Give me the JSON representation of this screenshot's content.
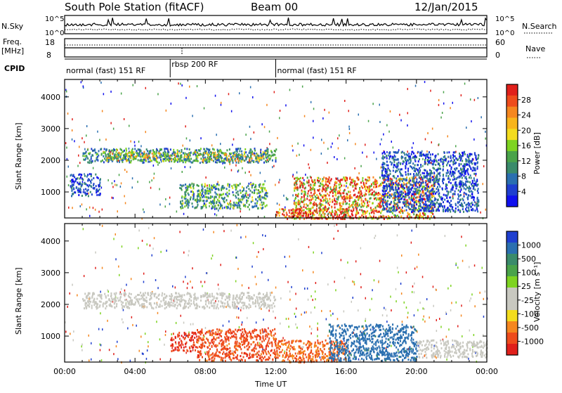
{
  "header": {
    "station": "South Pole Station (fitACF)",
    "beam": "Beam 00",
    "date": "12/Jan/2015"
  },
  "panels": {
    "nsky_label": "N.Sky",
    "nsearch_label": "N.Search",
    "nsky_ticks": [
      "10^5",
      "10^0"
    ],
    "nsearch_ticks": [
      "10^5",
      "10^0"
    ],
    "freq_label": "Freq.",
    "freq_unit": "[MHz]",
    "freq_ticks": [
      "18",
      "8"
    ],
    "nave_label": "Nave",
    "nave_ticks": [
      "60",
      "0"
    ],
    "cpid_label": "CPID",
    "cpid_segments": [
      {
        "start_h": 0,
        "end_h": 6,
        "label": "normal (fast) 151 RF"
      },
      {
        "start_h": 6,
        "end_h": 12,
        "label": "rbsp 200 RF"
      },
      {
        "start_h": 12,
        "end_h": 24,
        "label": "normal (fast) 151 RF"
      }
    ]
  },
  "power_colorbar": {
    "label": "Power [dB]",
    "ticks": [
      "28",
      "24",
      "20",
      "16",
      "12",
      "8",
      "4"
    ],
    "colors": [
      "#e0201b",
      "#ee4c1c",
      "#f5871f",
      "#f8b51c",
      "#f3dc1e",
      "#7ed321",
      "#4aa34a",
      "#3a8b6b",
      "#2a6fb0",
      "#1f3fcf",
      "#1010ee"
    ]
  },
  "velocity_colorbar": {
    "label": "Velocity [m s⁻¹]",
    "ticks": [
      "1000",
      "500",
      "100",
      "25",
      "-25",
      "-100",
      "-500",
      "-1000"
    ],
    "colors": [
      "#1f3fcf",
      "#2a6fb0",
      "#3a8b6b",
      "#4aa34a",
      "#7ed321",
      "#c8c8c0",
      "#c8c8c0",
      "#f3dc1e",
      "#f5871f",
      "#ee4c1c",
      "#e0201b"
    ]
  },
  "chart_data": {
    "type": "heatmap",
    "xlabel": "Time UT",
    "ylabel": "Slant Range [km]",
    "x_ticks": [
      "00:00",
      "04:00",
      "08:00",
      "12:00",
      "16:00",
      "20:00",
      "00:00"
    ],
    "x_range_hours": [
      0,
      24
    ],
    "y_ticks": [
      1000,
      2000,
      3000,
      4000
    ],
    "y_range_km": [
      180,
      4550
    ],
    "power_blobs": [
      {
        "t": [
          1,
          12
        ],
        "r": [
          1950,
          2400
        ],
        "value": 12
      },
      {
        "t": [
          2.2,
          11.5
        ],
        "r": [
          2000,
          2300
        ],
        "value": 18
      },
      {
        "t": [
          0.3,
          2
        ],
        "r": [
          900,
          1600
        ],
        "value": 8
      },
      {
        "t": [
          6.5,
          11.5
        ],
        "r": [
          500,
          1300
        ],
        "value": 14
      },
      {
        "t": [
          13,
          21
        ],
        "r": [
          180,
          1500
        ],
        "value": 24
      },
      {
        "t": [
          12,
          16
        ],
        "r": [
          180,
          500
        ],
        "value": 28
      },
      {
        "t": [
          18,
          23.5
        ],
        "r": [
          400,
          2300
        ],
        "value": 8
      }
    ],
    "velocity_blobs": [
      {
        "t": [
          1,
          12
        ],
        "r": [
          1900,
          2400
        ],
        "value": 0
      },
      {
        "t": [
          6,
          7.5
        ],
        "r": [
          550,
          1150
        ],
        "value": -500
      },
      {
        "t": [
          7.5,
          12
        ],
        "r": [
          250,
          1250
        ],
        "value": -400
      },
      {
        "t": [
          12,
          16
        ],
        "r": [
          200,
          900
        ],
        "value": -300
      },
      {
        "t": [
          15,
          20
        ],
        "r": [
          250,
          1400
        ],
        "value": 700
      },
      {
        "t": [
          20,
          24
        ],
        "r": [
          350,
          900
        ],
        "value": 0
      }
    ]
  }
}
